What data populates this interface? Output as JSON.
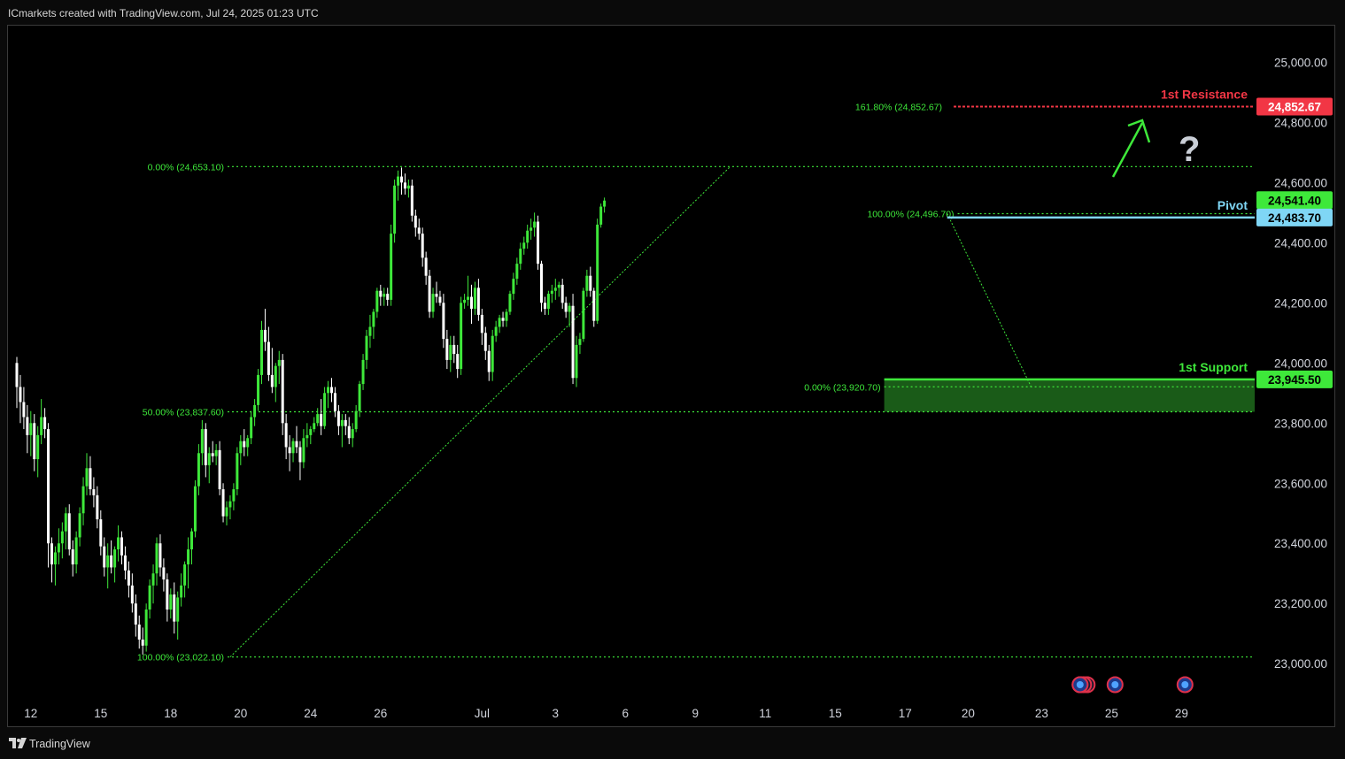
{
  "header": {
    "text": "ICmarkets created with TradingView.com, Jul 24, 2025 01:23 UTC"
  },
  "footer": {
    "brand": "TradingView",
    "logo_icon": "tradingview-logo-icon"
  },
  "colors": {
    "up": "#3ee83a",
    "down": "#ffffff",
    "fib": "#3ee83a",
    "resistance": "#f23645",
    "pivot": "#7fd6f5",
    "support": "#3ee83a",
    "support_zone": "#1f6b1c",
    "axis_text": "#d1d4dc",
    "arrow": "#3ee83a",
    "question_mark": "#c9ced6"
  },
  "chart_data": {
    "type": "candlestick",
    "instrument_note": "",
    "ylim": [
      22880,
      25110
    ],
    "y_ticks": [
      {
        "value": 25000,
        "label": "25,000.00"
      },
      {
        "value": 24800,
        "label": "24,800.00"
      },
      {
        "value": 24600,
        "label": "24,600.00"
      },
      {
        "value": 24400,
        "label": "24,400.00"
      },
      {
        "value": 24200,
        "label": "24,200.00"
      },
      {
        "value": 24000,
        "label": "24,000.00"
      },
      {
        "value": 23800,
        "label": "23,800.00"
      },
      {
        "value": 23600,
        "label": "23,600.00"
      },
      {
        "value": 23400,
        "label": "23,400.00"
      },
      {
        "value": 23200,
        "label": "23,200.00"
      },
      {
        "value": 23000,
        "label": "23,000.00"
      }
    ],
    "x_ticks": [
      {
        "index": 4,
        "label": "12"
      },
      {
        "index": 24,
        "label": "15"
      },
      {
        "index": 44,
        "label": "18"
      },
      {
        "index": 64,
        "label": "20"
      },
      {
        "index": 84,
        "label": "24"
      },
      {
        "index": 104,
        "label": "26"
      },
      {
        "index": 133,
        "label": "Jul"
      },
      {
        "index": 154,
        "label": "3"
      },
      {
        "index": 174,
        "label": "6"
      },
      {
        "index": 194,
        "label": "9"
      },
      {
        "index": 214,
        "label": "11"
      },
      {
        "index": 234,
        "label": "15"
      },
      {
        "index": 254,
        "label": "17"
      },
      {
        "index": 272,
        "label": "20"
      },
      {
        "index": 293,
        "label": "23"
      },
      {
        "index": 313,
        "label": "25"
      },
      {
        "index": 333,
        "label": "29"
      }
    ],
    "candles": [
      [
        24000,
        24020,
        23850,
        23920
      ],
      [
        23920,
        23960,
        23800,
        23870
      ],
      [
        23870,
        23920,
        23780,
        23820
      ],
      [
        23820,
        23860,
        23700,
        23760
      ],
      [
        23760,
        23840,
        23690,
        23800
      ],
      [
        23800,
        23830,
        23640,
        23680
      ],
      [
        23680,
        23790,
        23620,
        23760
      ],
      [
        23760,
        23880,
        23730,
        23820
      ],
      [
        23820,
        23850,
        23750,
        23780
      ],
      [
        23780,
        23800,
        23320,
        23400
      ],
      [
        23400,
        23420,
        23270,
        23330
      ],
      [
        23330,
        23390,
        23260,
        23370
      ],
      [
        23370,
        23450,
        23330,
        23400
      ],
      [
        23400,
        23470,
        23350,
        23440
      ],
      [
        23440,
        23520,
        23380,
        23500
      ],
      [
        23500,
        23530,
        23360,
        23380
      ],
      [
        23380,
        23410,
        23290,
        23330
      ],
      [
        23330,
        23440,
        23300,
        23420
      ],
      [
        23420,
        23520,
        23390,
        23500
      ],
      [
        23500,
        23620,
        23460,
        23590
      ],
      [
        23590,
        23700,
        23560,
        23650
      ],
      [
        23650,
        23690,
        23560,
        23580
      ],
      [
        23580,
        23620,
        23520,
        23560
      ],
      [
        23560,
        23590,
        23450,
        23480
      ],
      [
        23480,
        23510,
        23360,
        23390
      ],
      [
        23390,
        23420,
        23290,
        23320
      ],
      [
        23320,
        23400,
        23250,
        23360
      ],
      [
        23360,
        23410,
        23300,
        23320
      ],
      [
        23320,
        23390,
        23270,
        23380
      ],
      [
        23380,
        23460,
        23340,
        23420
      ],
      [
        23420,
        23440,
        23330,
        23360
      ],
      [
        23360,
        23390,
        23280,
        23310
      ],
      [
        23310,
        23340,
        23220,
        23260
      ],
      [
        23260,
        23300,
        23170,
        23200
      ],
      [
        23200,
        23230,
        23090,
        23130
      ],
      [
        23130,
        23160,
        23050,
        23080
      ],
      [
        23080,
        23120,
        23030,
        23060
      ],
      [
        23060,
        23200,
        23040,
        23180
      ],
      [
        23180,
        23280,
        23150,
        23260
      ],
      [
        23260,
        23330,
        23200,
        23300
      ],
      [
        23300,
        23420,
        23260,
        23400
      ],
      [
        23400,
        23430,
        23290,
        23320
      ],
      [
        23320,
        23350,
        23240,
        23280
      ],
      [
        23280,
        23300,
        23140,
        23180
      ],
      [
        23180,
        23250,
        23150,
        23230
      ],
      [
        23230,
        23270,
        23100,
        23140
      ],
      [
        23140,
        23240,
        23080,
        23220
      ],
      [
        23220,
        23300,
        23190,
        23260
      ],
      [
        23260,
        23340,
        23220,
        23330
      ],
      [
        23330,
        23420,
        23250,
        23380
      ],
      [
        23380,
        23450,
        23330,
        23440
      ],
      [
        23440,
        23610,
        23420,
        23590
      ],
      [
        23590,
        23730,
        23560,
        23700
      ],
      [
        23700,
        23810,
        23660,
        23780
      ],
      [
        23780,
        23800,
        23620,
        23660
      ],
      [
        23660,
        23720,
        23600,
        23700
      ],
      [
        23700,
        23740,
        23670,
        23690
      ],
      [
        23690,
        23730,
        23660,
        23710
      ],
      [
        23710,
        23740,
        23560,
        23580
      ],
      [
        23580,
        23600,
        23470,
        23490
      ],
      [
        23490,
        23540,
        23460,
        23520
      ],
      [
        23520,
        23560,
        23480,
        23540
      ],
      [
        23540,
        23600,
        23510,
        23580
      ],
      [
        23580,
        23720,
        23560,
        23700
      ],
      [
        23700,
        23760,
        23660,
        23740
      ],
      [
        23740,
        23780,
        23690,
        23720
      ],
      [
        23720,
        23760,
        23690,
        23750
      ],
      [
        23750,
        23840,
        23730,
        23820
      ],
      [
        23820,
        23880,
        23790,
        23860
      ],
      [
        23860,
        23980,
        23840,
        23960
      ],
      [
        23960,
        24140,
        23930,
        24110
      ],
      [
        24110,
        24180,
        24040,
        24070
      ],
      [
        24070,
        24120,
        23940,
        23960
      ],
      [
        23960,
        24050,
        23900,
        23920
      ],
      [
        23920,
        24000,
        23870,
        23990
      ],
      [
        23990,
        24040,
        23930,
        24010
      ],
      [
        24010,
        24030,
        23760,
        23800
      ],
      [
        23800,
        23830,
        23680,
        23720
      ],
      [
        23720,
        23760,
        23640,
        23700
      ],
      [
        23700,
        23750,
        23670,
        23740
      ],
      [
        23740,
        23790,
        23700,
        23720
      ],
      [
        23720,
        23740,
        23610,
        23670
      ],
      [
        23670,
        23780,
        23650,
        23750
      ],
      [
        23750,
        23800,
        23720,
        23760
      ],
      [
        23760,
        23790,
        23730,
        23780
      ],
      [
        23780,
        23820,
        23770,
        23800
      ],
      [
        23800,
        23850,
        23790,
        23830
      ],
      [
        23830,
        23880,
        23760,
        23790
      ],
      [
        23790,
        23920,
        23780,
        23900
      ],
      [
        23900,
        23940,
        23850,
        23920
      ],
      [
        23920,
        23950,
        23870,
        23900
      ],
      [
        23900,
        23920,
        23820,
        23840
      ],
      [
        23840,
        23860,
        23760,
        23790
      ],
      [
        23790,
        23830,
        23720,
        23810
      ],
      [
        23810,
        23830,
        23760,
        23790
      ],
      [
        23790,
        23820,
        23730,
        23750
      ],
      [
        23750,
        23800,
        23720,
        23780
      ],
      [
        23780,
        23860,
        23770,
        23840
      ],
      [
        23840,
        23940,
        23820,
        23930
      ],
      [
        23930,
        24030,
        23910,
        24010
      ],
      [
        24010,
        24110,
        23980,
        24090
      ],
      [
        24090,
        24160,
        24050,
        24120
      ],
      [
        24120,
        24180,
        24080,
        24170
      ],
      [
        24170,
        24250,
        24150,
        24240
      ],
      [
        24240,
        24260,
        24190,
        24220
      ],
      [
        24220,
        24250,
        24190,
        24230
      ],
      [
        24230,
        24250,
        24190,
        24210
      ],
      [
        24210,
        24460,
        24190,
        24430
      ],
      [
        24430,
        24610,
        24400,
        24590
      ],
      [
        24590,
        24640,
        24540,
        24620
      ],
      [
        24620,
        24650,
        24560,
        24600
      ],
      [
        24600,
        24630,
        24560,
        24580
      ],
      [
        24580,
        24610,
        24550,
        24590
      ],
      [
        24590,
        24610,
        24470,
        24490
      ],
      [
        24490,
        24510,
        24420,
        24450
      ],
      [
        24450,
        24480,
        24410,
        24430
      ],
      [
        24430,
        24450,
        24320,
        24350
      ],
      [
        24350,
        24370,
        24260,
        24290
      ],
      [
        24290,
        24310,
        24150,
        24170
      ],
      [
        24170,
        24250,
        24150,
        24230
      ],
      [
        24230,
        24270,
        24200,
        24220
      ],
      [
        24220,
        24240,
        24190,
        24200
      ],
      [
        24200,
        24230,
        24050,
        24080
      ],
      [
        24080,
        24110,
        23980,
        24010
      ],
      [
        24010,
        24090,
        23970,
        24060
      ],
      [
        24060,
        24090,
        24000,
        24030
      ],
      [
        24030,
        24060,
        23950,
        23980
      ],
      [
        23980,
        24220,
        23960,
        24200
      ],
      [
        24200,
        24230,
        24180,
        24210
      ],
      [
        24210,
        24290,
        24190,
        24220
      ],
      [
        24220,
        24260,
        24130,
        24180
      ],
      [
        24180,
        24270,
        24160,
        24250
      ],
      [
        24250,
        24280,
        24140,
        24160
      ],
      [
        24160,
        24180,
        24060,
        24100
      ],
      [
        24100,
        24120,
        24010,
        24040
      ],
      [
        24040,
        24060,
        23940,
        23970
      ],
      [
        23970,
        24110,
        23940,
        24090
      ],
      [
        24090,
        24140,
        24070,
        24120
      ],
      [
        24120,
        24160,
        24100,
        24150
      ],
      [
        24150,
        24170,
        24120,
        24140
      ],
      [
        24140,
        24180,
        24120,
        24170
      ],
      [
        24170,
        24240,
        24160,
        24230
      ],
      [
        24230,
        24300,
        24210,
        24280
      ],
      [
        24280,
        24350,
        24260,
        24330
      ],
      [
        24330,
        24400,
        24310,
        24380
      ],
      [
        24380,
        24420,
        24360,
        24400
      ],
      [
        24400,
        24460,
        24380,
        24440
      ],
      [
        24440,
        24480,
        24410,
        24450
      ],
      [
        24450,
        24500,
        24420,
        24470
      ],
      [
        24470,
        24490,
        24310,
        24330
      ],
      [
        24330,
        24340,
        24170,
        24200
      ],
      [
        24200,
        24220,
        24160,
        24180
      ],
      [
        24180,
        24240,
        24160,
        24230
      ],
      [
        24230,
        24260,
        24200,
        24240
      ],
      [
        24240,
        24280,
        24210,
        24250
      ],
      [
        24250,
        24270,
        24220,
        24260
      ],
      [
        24260,
        24280,
        24180,
        24200
      ],
      [
        24200,
        24220,
        24150,
        24170
      ],
      [
        24170,
        24200,
        24120,
        24190
      ],
      [
        24190,
        24230,
        23930,
        23950
      ],
      [
        23950,
        24090,
        23920,
        24060
      ],
      [
        24060,
        24100,
        24030,
        24080
      ],
      [
        24080,
        24250,
        24070,
        24240
      ],
      [
        24240,
        24310,
        24220,
        24290
      ],
      [
        24290,
        24320,
        24220,
        24240
      ],
      [
        24240,
        24250,
        24120,
        24140
      ],
      [
        24140,
        24480,
        24130,
        24460
      ],
      [
        24460,
        24530,
        24450,
        24520
      ],
      [
        24520,
        24550,
        24500,
        24540
      ]
    ],
    "levels": [
      {
        "name": "1st Resistance",
        "value": 24852.67,
        "price_label": "24,852.67",
        "fib_label": "161.80% (24,852.67)",
        "style": "red-dashed"
      },
      {
        "name": "Pivot",
        "value": 24483.7,
        "price_label": "24,483.70",
        "style": "blue-solid"
      },
      {
        "name": "1st Support",
        "value": 23945.5,
        "price_label": "23,945.50",
        "style": "green-solid"
      }
    ],
    "last_price": {
      "value": 24541.4,
      "label": "24,541.40"
    },
    "fib_lines": [
      {
        "label": "0.00% (24,653.10)",
        "value": 24653.1
      },
      {
        "label": "50.00% (23,837.60)",
        "value": 23837.6
      },
      {
        "label": "100.00% (23,022.10)",
        "value": 23022.1
      },
      {
        "label": "100.00% (24,496.70)",
        "value": 24496.7
      },
      {
        "label": "0.00% (23,920.70)",
        "value": 23920.7
      }
    ],
    "support_zone": {
      "top": 23945.5,
      "bottom": 23837.6
    },
    "annotations": {
      "question_mark": "?"
    },
    "event_icons": [
      {
        "index": 304,
        "label": ""
      },
      {
        "index": 314,
        "label": ""
      },
      {
        "index": 334,
        "label": ""
      }
    ]
  }
}
